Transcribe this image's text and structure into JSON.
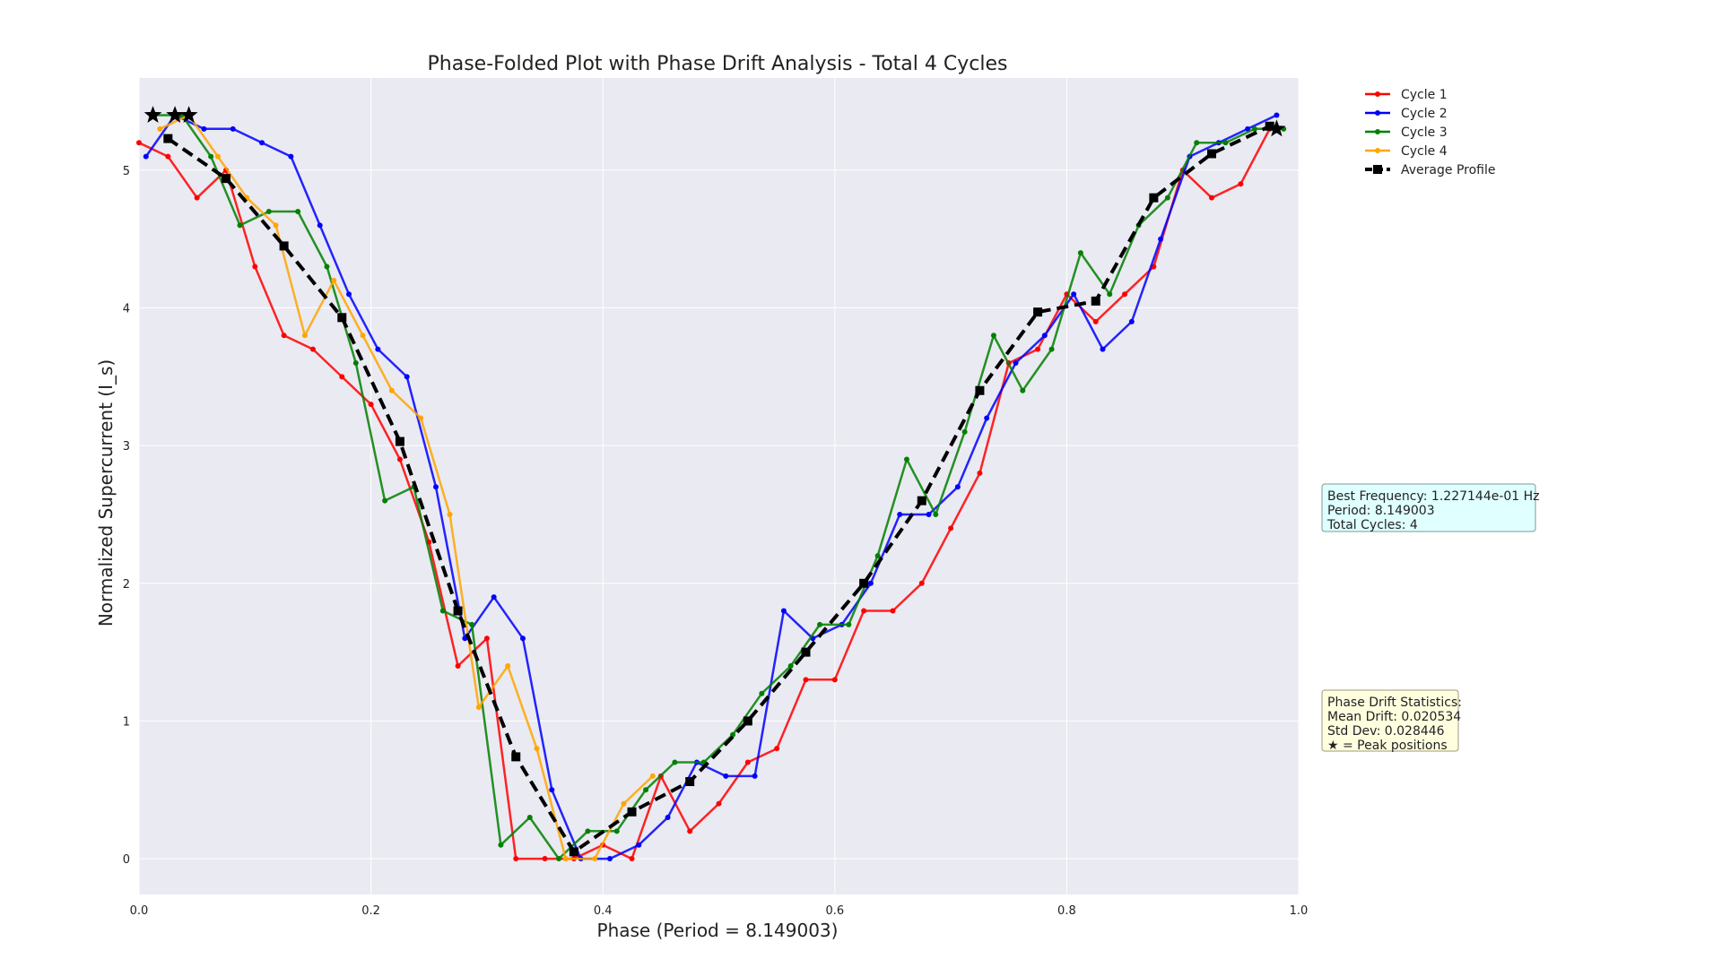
{
  "chart_data": {
    "type": "line",
    "title": "Phase-Folded Plot with Phase Drift Analysis - Total 4 Cycles",
    "xlabel": "Phase (Period = 8.149003)",
    "ylabel": "Normalized Supercurrent (I_s)",
    "xlim": [
      0,
      1
    ],
    "ylim": [
      -0.26,
      5.67
    ],
    "xticks": [
      "0.0",
      "0.2",
      "0.4",
      "0.6",
      "0.8",
      "1.0"
    ],
    "yticks": [
      "0",
      "1",
      "2",
      "3",
      "4",
      "5"
    ],
    "grid": true,
    "legend_position": "top-right (outside plot)",
    "series": [
      {
        "name": "Cycle 1",
        "color": "#ff0000",
        "marker": "circle",
        "x": [
          0.0,
          0.025,
          0.05,
          0.075,
          0.1,
          0.125,
          0.15,
          0.175,
          0.2,
          0.225,
          0.25,
          0.275,
          0.3,
          0.325,
          0.35,
          0.375,
          0.4,
          0.425,
          0.45,
          0.475,
          0.5,
          0.525,
          0.55,
          0.575,
          0.6,
          0.625,
          0.65,
          0.675,
          0.7,
          0.725,
          0.75,
          0.775,
          0.8,
          0.825,
          0.85,
          0.875,
          0.9,
          0.925,
          0.95,
          0.975
        ],
        "y": [
          5.2,
          5.1,
          4.8,
          5.0,
          4.3,
          3.8,
          3.7,
          3.5,
          3.3,
          2.9,
          2.3,
          1.4,
          1.6,
          0.0,
          0.0,
          0.0,
          0.1,
          0.0,
          0.6,
          0.2,
          0.4,
          0.7,
          0.8,
          1.3,
          1.3,
          1.8,
          1.8,
          2.0,
          2.4,
          2.8,
          3.6,
          3.7,
          4.1,
          3.9,
          4.1,
          4.3,
          5.0,
          4.8,
          4.9,
          5.3
        ]
      },
      {
        "name": "Cycle 2",
        "color": "#0000ff",
        "marker": "circle",
        "x": [
          0.006,
          0.031,
          0.056,
          0.081,
          0.106,
          0.131,
          0.156,
          0.181,
          0.206,
          0.231,
          0.256,
          0.281,
          0.306,
          0.331,
          0.356,
          0.381,
          0.406,
          0.431,
          0.456,
          0.481,
          0.506,
          0.531,
          0.556,
          0.581,
          0.606,
          0.631,
          0.656,
          0.681,
          0.706,
          0.731,
          0.756,
          0.781,
          0.806,
          0.831,
          0.856,
          0.881,
          0.906,
          0.931,
          0.956,
          0.981
        ],
        "y": [
          5.1,
          5.4,
          5.3,
          5.3,
          5.2,
          5.1,
          4.6,
          4.1,
          3.7,
          3.5,
          2.7,
          1.6,
          1.9,
          1.6,
          0.5,
          0.0,
          0.0,
          0.1,
          0.3,
          0.7,
          0.6,
          0.6,
          1.8,
          1.6,
          1.7,
          2.0,
          2.5,
          2.5,
          2.7,
          3.2,
          3.6,
          3.8,
          4.1,
          3.7,
          3.9,
          4.5,
          5.1,
          5.2,
          5.3,
          5.4
        ]
      },
      {
        "name": "Cycle 3",
        "color": "#008000",
        "marker": "circle",
        "x": [
          0.012,
          0.037,
          0.062,
          0.087,
          0.112,
          0.137,
          0.162,
          0.187,
          0.212,
          0.237,
          0.262,
          0.287,
          0.312,
          0.337,
          0.362,
          0.387,
          0.412,
          0.437,
          0.462,
          0.487,
          0.512,
          0.537,
          0.562,
          0.587,
          0.612,
          0.637,
          0.662,
          0.687,
          0.712,
          0.737,
          0.762,
          0.787,
          0.812,
          0.837,
          0.862,
          0.887,
          0.912,
          0.937,
          0.962,
          0.987
        ],
        "y": [
          5.4,
          5.4,
          5.1,
          4.6,
          4.7,
          4.7,
          4.3,
          3.6,
          2.6,
          2.7,
          1.8,
          1.7,
          0.1,
          0.3,
          0.0,
          0.2,
          0.2,
          0.5,
          0.7,
          0.7,
          0.9,
          1.2,
          1.4,
          1.7,
          1.7,
          2.2,
          2.9,
          2.5,
          3.1,
          3.8,
          3.4,
          3.7,
          4.4,
          4.1,
          4.6,
          4.8,
          5.2,
          5.2,
          5.3,
          5.3
        ]
      },
      {
        "name": "Cycle 4",
        "color": "#ffa500",
        "marker": "circle",
        "x": [
          0.018,
          0.043,
          0.068,
          0.093,
          0.118,
          0.143,
          0.168,
          0.193,
          0.218,
          0.243,
          0.268,
          0.293,
          0.318,
          0.343,
          0.368,
          0.393,
          0.418,
          0.443
        ],
        "y": [
          5.3,
          5.4,
          5.1,
          4.8,
          4.6,
          3.8,
          4.2,
          3.8,
          3.4,
          3.2,
          2.5,
          1.1,
          1.4,
          0.8,
          0.0,
          0.0,
          0.4,
          0.6
        ]
      },
      {
        "name": "Average Profile",
        "color": "#000000",
        "marker": "square",
        "dashed": true,
        "x": [
          0.025,
          0.075,
          0.125,
          0.175,
          0.225,
          0.275,
          0.325,
          0.375,
          0.425,
          0.475,
          0.525,
          0.575,
          0.625,
          0.675,
          0.725,
          0.775,
          0.825,
          0.875,
          0.925,
          0.975
        ],
        "y": [
          5.23,
          4.94,
          4.45,
          3.93,
          3.03,
          1.8,
          0.74,
          0.05,
          0.34,
          0.56,
          1.0,
          1.5,
          2.0,
          2.6,
          3.4,
          3.97,
          4.05,
          4.8,
          5.12,
          5.32
        ]
      }
    ],
    "peaks": {
      "marker": "star",
      "x": [
        0.012,
        0.031,
        0.043,
        0.981
      ],
      "y": [
        5.4,
        5.4,
        5.4,
        5.3
      ]
    },
    "annotations": {
      "frequency_box": {
        "lines": [
          "Best Frequency: 1.227144e-01 Hz",
          "Period: 8.149003",
          "Total Cycles: 4"
        ],
        "background": "#e0ffff"
      },
      "drift_box": {
        "lines": [
          "Phase Drift Statistics:",
          "Mean Drift: 0.020534",
          "Std Dev: 0.028446",
          "★ = Peak positions"
        ],
        "background": "#ffffe0"
      }
    },
    "plot_background": "#eaeaf2"
  }
}
